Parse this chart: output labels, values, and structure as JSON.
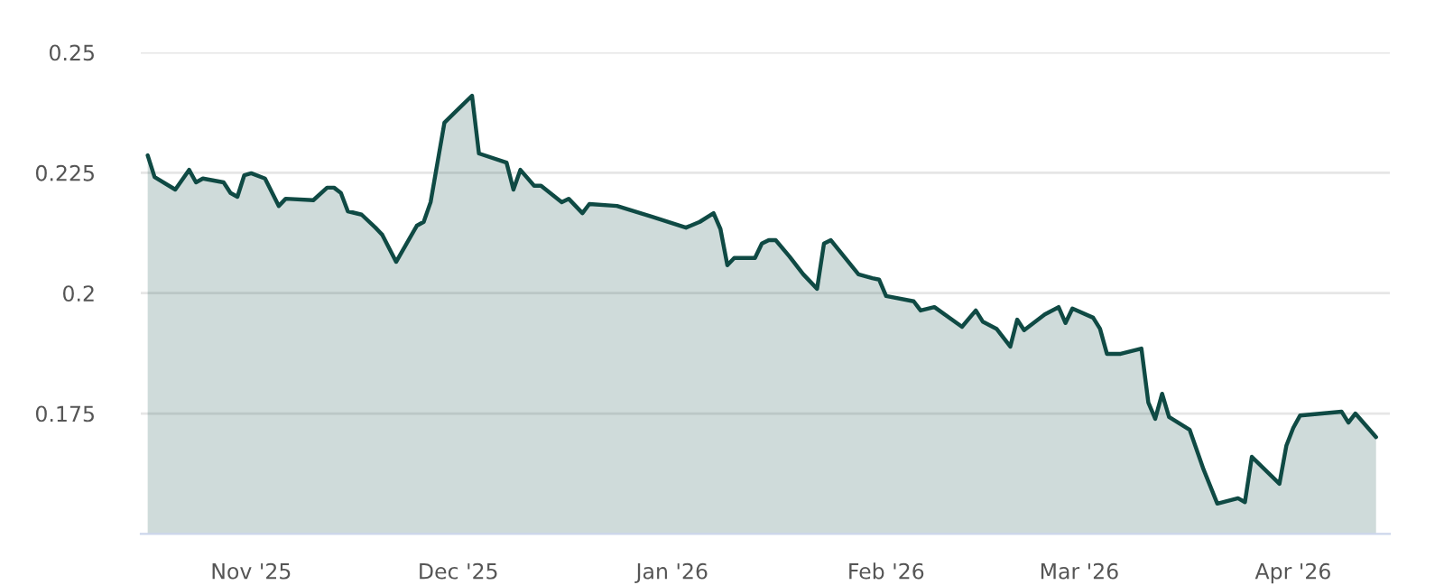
{
  "chart_data": {
    "type": "area",
    "x": [
      "2025-10-17",
      "2025-10-18",
      "2025-10-21",
      "2025-10-23",
      "2025-10-24",
      "2025-10-25",
      "2025-10-28",
      "2025-10-29",
      "2025-10-30",
      "2025-10-31",
      "2025-11-01",
      "2025-11-03",
      "2025-11-05",
      "2025-11-06",
      "2025-11-10",
      "2025-11-12",
      "2025-11-13",
      "2025-11-14",
      "2025-11-15",
      "2025-11-17",
      "2025-11-19",
      "2025-11-20",
      "2025-11-22",
      "2025-11-25",
      "2025-11-26",
      "2025-11-27",
      "2025-11-29",
      "2025-12-03",
      "2025-12-04",
      "2025-12-08",
      "2025-12-09",
      "2025-12-10",
      "2025-12-12",
      "2025-12-13",
      "2025-12-16",
      "2025-12-17",
      "2025-12-19",
      "2025-12-20",
      "2025-12-24",
      "2025-12-29",
      "2026-01-03",
      "2026-01-05",
      "2026-01-07",
      "2026-01-08",
      "2026-01-09",
      "2026-01-10",
      "2026-01-13",
      "2026-01-14",
      "2026-01-15",
      "2026-01-16",
      "2026-01-18",
      "2026-01-20",
      "2026-01-22",
      "2026-01-23",
      "2026-01-24",
      "2026-01-28",
      "2026-01-30",
      "2026-01-31",
      "2026-02-01",
      "2026-02-05",
      "2026-02-06",
      "2026-02-08",
      "2026-02-12",
      "2026-02-14",
      "2026-02-15",
      "2026-02-17",
      "2026-02-19",
      "2026-02-20",
      "2026-02-21",
      "2026-02-24",
      "2026-02-26",
      "2026-02-27",
      "2026-02-28",
      "2026-03-03",
      "2026-03-04",
      "2026-03-05",
      "2026-03-07",
      "2026-03-10",
      "2026-03-11",
      "2026-03-12",
      "2026-03-13",
      "2026-03-14",
      "2026-03-17",
      "2026-03-19",
      "2026-03-21",
      "2026-03-24",
      "2026-03-25",
      "2026-03-26",
      "2026-03-30",
      "2026-03-31",
      "2026-04-01",
      "2026-04-02",
      "2026-04-08",
      "2026-04-09",
      "2026-04-10",
      "2026-04-13"
    ],
    "series": [
      {
        "color": "#0f4a44",
        "values": [
          0.2286,
          0.2241,
          0.2215,
          0.2256,
          0.223,
          0.2238,
          0.223,
          0.2208,
          0.22,
          0.2245,
          0.2249,
          0.2238,
          0.2181,
          0.2196,
          0.2193,
          0.2219,
          0.2219,
          0.2208,
          0.217,
          0.2163,
          0.2136,
          0.2121,
          0.2065,
          0.214,
          0.2148,
          0.2189,
          0.2354,
          0.241,
          0.229,
          0.2271,
          0.2215,
          0.2256,
          0.2223,
          0.2223,
          0.2189,
          0.2196,
          0.2166,
          0.2185,
          0.2181,
          0.2159,
          0.2136,
          0.2148,
          0.2166,
          0.2133,
          0.2058,
          0.2073,
          0.2073,
          0.2103,
          0.211,
          0.211,
          0.2076,
          0.2039,
          0.2009,
          0.2103,
          0.211,
          0.2039,
          0.2031,
          0.2028,
          0.1994,
          0.1983,
          0.1964,
          0.1971,
          0.193,
          0.1964,
          0.1941,
          0.1926,
          0.1889,
          0.1945,
          0.1923,
          0.1956,
          0.1971,
          0.1938,
          0.1968,
          0.1949,
          0.1926,
          0.1874,
          0.1874,
          0.1885,
          0.1773,
          0.1739,
          0.1791,
          0.1743,
          0.1716,
          0.1634,
          0.1563,
          0.1574,
          0.1566,
          0.166,
          0.1604,
          0.1683,
          0.172,
          0.1746,
          0.1754,
          0.1731,
          0.175,
          0.1701
        ]
      }
    ],
    "xlim": [
      "2025-10-16",
      "2026-04-15"
    ],
    "xticks": [
      {
        "value": "2025-11-01",
        "label": "Nov '25"
      },
      {
        "value": "2025-12-01",
        "label": "Dec '25"
      },
      {
        "value": "2026-01-01",
        "label": "Jan '26"
      },
      {
        "value": "2026-02-01",
        "label": "Feb '26"
      },
      {
        "value": "2026-03-01",
        "label": "Mar '26"
      },
      {
        "value": "2026-04-01",
        "label": "Apr '26"
      }
    ],
    "ylim": [
      0.15,
      0.25
    ],
    "yticks": [
      {
        "value": 0.175,
        "label": "0.175"
      },
      {
        "value": 0.2,
        "label": "0.2"
      },
      {
        "value": 0.225,
        "label": "0.225"
      },
      {
        "value": 0.25,
        "label": "0.25"
      }
    ],
    "grid": "y",
    "marker": "none",
    "line_style": "solid"
  }
}
